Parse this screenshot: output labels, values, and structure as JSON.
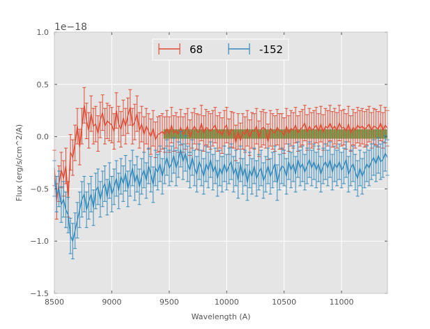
{
  "chart_data": {
    "type": "line",
    "title": "",
    "xlabel": "Wavelength (A)",
    "ylabel": "Flux (erg/s/cm^2/A)",
    "offset_label": "1e−18",
    "xlim": [
      8500,
      11400
    ],
    "ylim": [
      -1.5,
      1.0
    ],
    "x_ticks": [
      8500,
      9000,
      9500,
      10000,
      10500,
      11000
    ],
    "x_tick_labels": [
      "8500",
      "9000",
      "9500",
      "10000",
      "10500",
      "11000"
    ],
    "y_ticks": [
      -1.5,
      -1.0,
      -0.5,
      0.0,
      0.5,
      1.0
    ],
    "y_tick_labels": [
      "−1.5",
      "−1.0",
      "−0.5",
      "0.0",
      "0.5",
      "1.0"
    ],
    "grid": true,
    "legend_position": "top-center",
    "band": {
      "x_start": 9450,
      "x_end": 11400,
      "y_low": -0.02,
      "y_high": 0.07,
      "color": "#4f9e3c"
    },
    "x_start": 8500,
    "x_step": 20,
    "series": [
      {
        "name": "68",
        "color": "#e24a33",
        "error": 0.17,
        "values": [
          -0.3,
          -0.62,
          -0.45,
          -0.32,
          -0.4,
          -0.28,
          -0.6,
          -0.15,
          -0.2,
          -0.06,
          0.1,
          -0.1,
          0.1,
          0.3,
          0.15,
          0.06,
          0.22,
          0.1,
          0.12,
          0.03,
          0.16,
          0.23,
          0.1,
          0.15,
          0.13,
          0.11,
          0.05,
          0.25,
          0.12,
          0.07,
          0.18,
          0.1,
          0.2,
          0.28,
          0.1,
          0.14,
          0.22,
          0.06,
          0.12,
          0.02,
          0.1,
          0.05,
          0.0,
          0.08,
          -0.03,
          0.02,
          0.03,
          0.05,
          0.02,
          0.08,
          0.02,
          0.11,
          0.03,
          0.06,
          0.02,
          0.09,
          0.02,
          0.05,
          0.1,
          -0.01,
          0.06,
          0.1,
          0.05,
          0.04,
          0.13,
          0.03,
          0.09,
          0.07,
          0.05,
          0.08,
          0.11,
          0.03,
          0.06,
          0.01,
          0.08,
          0.11,
          0.0,
          0.07,
          0.06,
          -0.06,
          0.05,
          -0.04,
          0.05,
          0.02,
          0.08,
          -0.01,
          0.06,
          0.05,
          0.1,
          -0.02,
          0.07,
          0.09,
          0.06,
          -0.05,
          0.08,
          0.05,
          0.03,
          0.09,
          0.05,
          0.05,
          0.01,
          0.1,
          0.03,
          0.08,
          0.06,
          0.11,
          0.03,
          0.07,
          0.09,
          0.13,
          0.04,
          0.1,
          0.06,
          0.08,
          0.11,
          0.05,
          0.12,
          0.04,
          0.1,
          0.08,
          0.13,
          0.07,
          0.1,
          0.06,
          0.13,
          0.08,
          0.09,
          0.05,
          0.12,
          0.03,
          0.09,
          0.06,
          0.11,
          0.08,
          0.1,
          0.07,
          0.09,
          0.12,
          0.06,
          0.1,
          0.09,
          0.07,
          0.13,
          0.06,
          0.11,
          0.08
        ]
      },
      {
        "name": "-152",
        "color": "#348abd",
        "error": 0.17,
        "values": [
          -0.4,
          -0.55,
          -0.5,
          -0.65,
          -0.6,
          -0.7,
          -0.75,
          -0.95,
          -1.0,
          -0.9,
          -0.8,
          -0.7,
          -0.6,
          -0.55,
          -0.7,
          -0.62,
          -0.55,
          -0.68,
          -0.52,
          -0.48,
          -0.6,
          -0.5,
          -0.45,
          -0.58,
          -0.42,
          -0.55,
          -0.48,
          -0.4,
          -0.52,
          -0.38,
          -0.45,
          -0.35,
          -0.5,
          -0.4,
          -0.3,
          -0.44,
          -0.36,
          -0.48,
          -0.38,
          -0.32,
          -0.42,
          -0.28,
          -0.36,
          -0.46,
          -0.3,
          -0.34,
          -0.26,
          -0.38,
          -0.28,
          -0.2,
          -0.3,
          -0.26,
          -0.18,
          -0.3,
          -0.22,
          -0.12,
          -0.24,
          -0.16,
          -0.26,
          -0.32,
          -0.2,
          -0.3,
          -0.36,
          -0.24,
          -0.3,
          -0.38,
          -0.26,
          -0.32,
          -0.22,
          -0.34,
          -0.28,
          -0.4,
          -0.3,
          -0.36,
          -0.26,
          -0.34,
          -0.28,
          -0.24,
          -0.36,
          -0.3,
          -0.42,
          -0.26,
          -0.38,
          -0.3,
          -0.44,
          -0.32,
          -0.38,
          -0.28,
          -0.4,
          -0.34,
          -0.3,
          -0.42,
          -0.36,
          -0.28,
          -0.38,
          -0.32,
          -0.26,
          -0.44,
          -0.34,
          -0.28,
          -0.3,
          -0.38,
          -0.24,
          -0.32,
          -0.26,
          -0.36,
          -0.22,
          -0.3,
          -0.26,
          -0.34,
          -0.28,
          -0.22,
          -0.3,
          -0.24,
          -0.32,
          -0.26,
          -0.36,
          -0.28,
          -0.24,
          -0.3,
          -0.22,
          -0.34,
          -0.26,
          -0.3,
          -0.24,
          -0.32,
          -0.28,
          -0.22,
          -0.36,
          -0.3,
          -0.26,
          -0.34,
          -0.4,
          -0.3,
          -0.38,
          -0.32,
          -0.26,
          -0.3,
          -0.24,
          -0.2,
          -0.26,
          -0.18,
          -0.24,
          -0.22,
          -0.16,
          -0.2
        ]
      }
    ]
  }
}
